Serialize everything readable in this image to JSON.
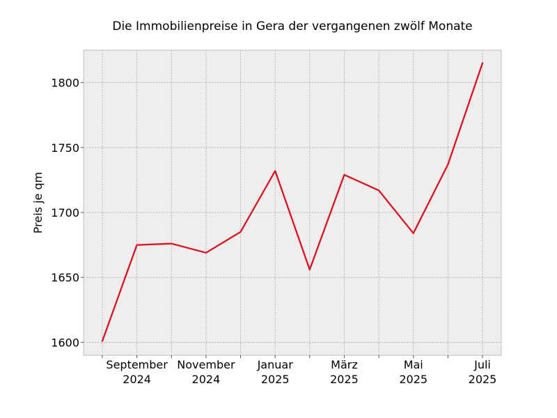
{
  "chart_data": {
    "type": "line",
    "title": "Die Immobilienpreise in Gera der vergangenen zwölf Monate",
    "xlabel": "",
    "ylabel": "Preis je qm",
    "x": [
      "2024-08",
      "2024-09",
      "2024-10",
      "2024-11",
      "2024-12",
      "2025-01",
      "2025-02",
      "2025-03",
      "2025-04",
      "2025-05",
      "2025-06",
      "2025-07"
    ],
    "series": [
      {
        "values": [
          1601,
          1675,
          1676,
          1669,
          1685,
          1732,
          1656,
          1729,
          1717,
          1684,
          1737,
          1815
        ]
      }
    ],
    "ylim": [
      1590,
      1825
    ],
    "yticks": [
      1600,
      1650,
      1700,
      1750,
      1800
    ],
    "xtick_labels": [
      {
        "month": "2024-09",
        "line1": "September",
        "line2": "2024"
      },
      {
        "month": "2024-11",
        "line1": "November",
        "line2": "2024"
      },
      {
        "month": "2025-01",
        "line1": "Januar",
        "line2": "2025"
      },
      {
        "month": "2025-03",
        "line1": "März",
        "line2": "2025"
      },
      {
        "month": "2025-05",
        "line1": "Mai",
        "line2": "2025"
      },
      {
        "month": "2025-07",
        "line1": "Juli",
        "line2": "2025"
      }
    ],
    "grid": true,
    "colors": {
      "line": "#e00f1e",
      "plot_background": "#eeeeee"
    }
  }
}
